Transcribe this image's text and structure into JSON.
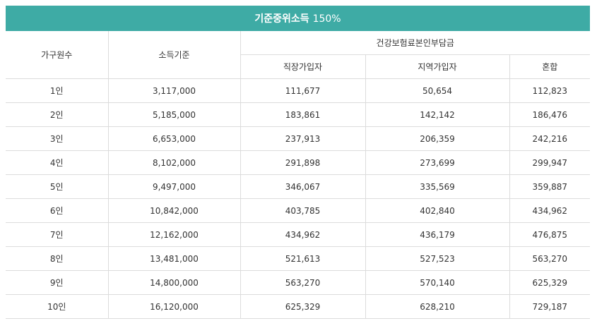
{
  "table": {
    "title": "기준중위소득",
    "title_suffix": "150%",
    "headers": {
      "household": "가구원수",
      "income": "소득기준",
      "premium_group": "건강보험료본인부담금",
      "workplace": "직장가입자",
      "regional": "지역가입자",
      "mixed": "혼합"
    },
    "rows": [
      {
        "household": "1인",
        "income": "3,117,000",
        "workplace": "111,677",
        "regional": "50,654",
        "mixed": "112,823"
      },
      {
        "household": "2인",
        "income": "5,185,000",
        "workplace": "183,861",
        "regional": "142,142",
        "mixed": "186,476"
      },
      {
        "household": "3인",
        "income": "6,653,000",
        "workplace": "237,913",
        "regional": "206,359",
        "mixed": "242,216"
      },
      {
        "household": "4인",
        "income": "8,102,000",
        "workplace": "291,898",
        "regional": "273,699",
        "mixed": "299,947"
      },
      {
        "household": "5인",
        "income": "9,497,000",
        "workplace": "346,067",
        "regional": "335,569",
        "mixed": "359,887"
      },
      {
        "household": "6인",
        "income": "10,842,000",
        "workplace": "403,785",
        "regional": "402,840",
        "mixed": "434,962"
      },
      {
        "household": "7인",
        "income": "12,162,000",
        "workplace": "434,962",
        "regional": "436,179",
        "mixed": "476,875"
      },
      {
        "household": "8인",
        "income": "13,481,000",
        "workplace": "521,613",
        "regional": "527,523",
        "mixed": "563,270"
      },
      {
        "household": "9인",
        "income": "14,800,000",
        "workplace": "563,270",
        "regional": "570,140",
        "mixed": "625,329"
      },
      {
        "household": "10인",
        "income": "16,120,000",
        "workplace": "625,329",
        "regional": "628,210",
        "mixed": "729,187"
      }
    ]
  }
}
